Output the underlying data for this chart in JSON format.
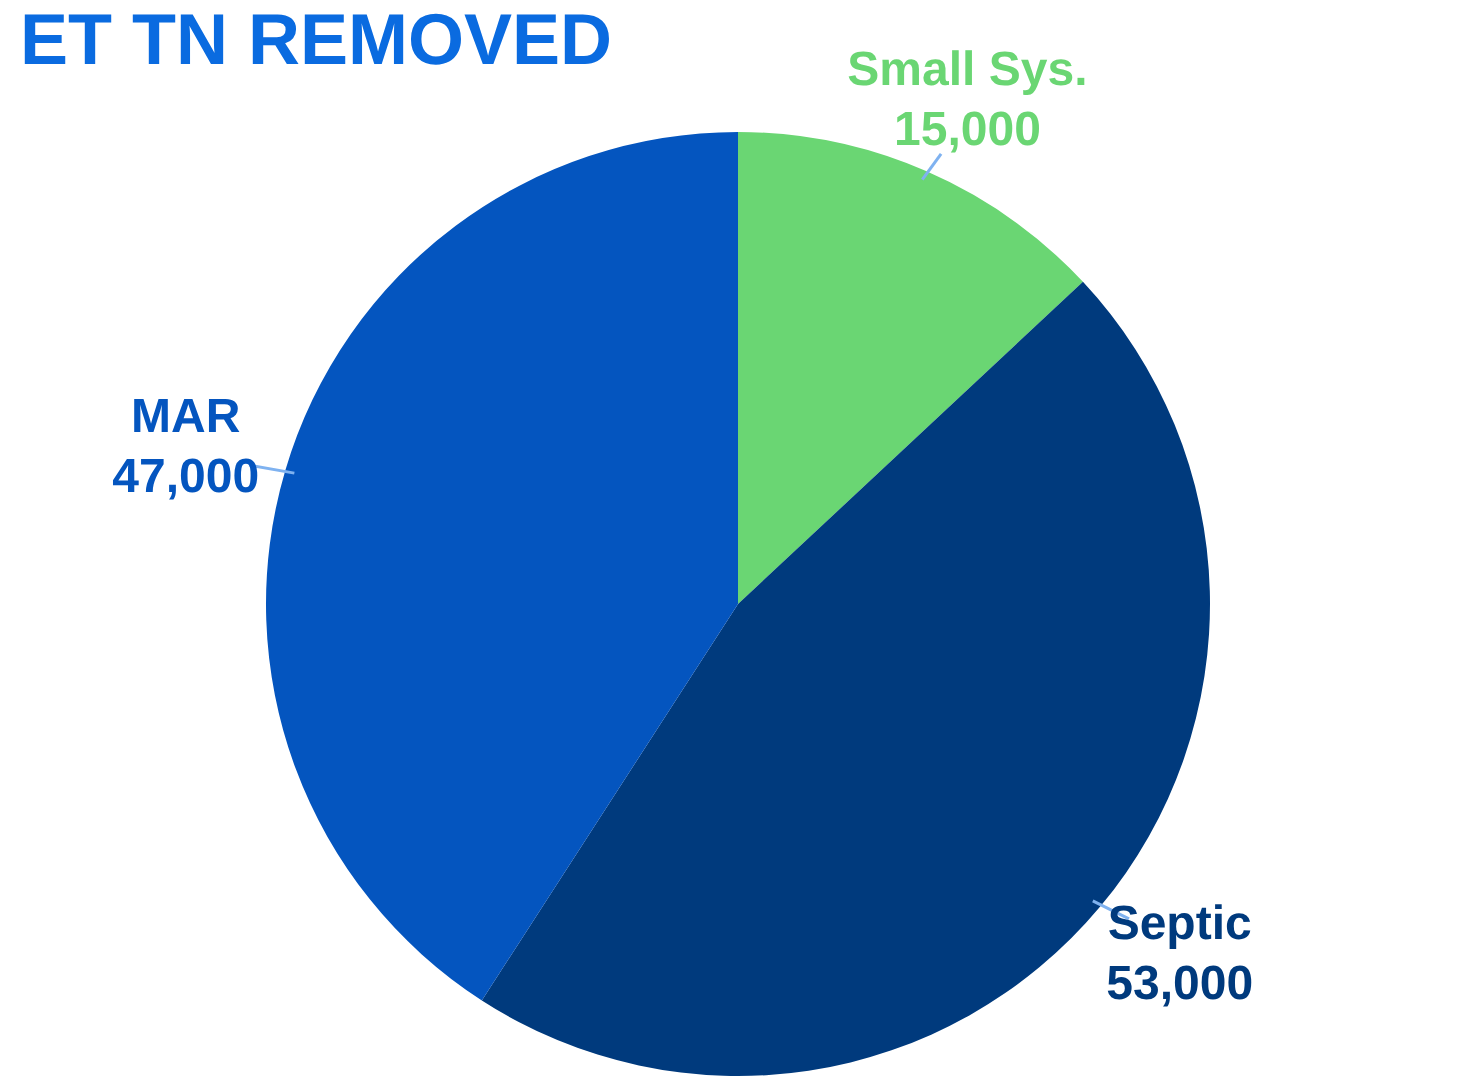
{
  "chart_data": {
    "type": "pie",
    "title": "ET TN REMOVED",
    "categories": [
      "Small Sys.",
      "Septic",
      "MAR"
    ],
    "values": [
      15000,
      53000,
      47000
    ],
    "colors": [
      "#6ad673",
      "#003a7d",
      "#0455bf"
    ],
    "value_labels": [
      "15,000",
      "53,000",
      "47,000"
    ],
    "legend": false
  }
}
